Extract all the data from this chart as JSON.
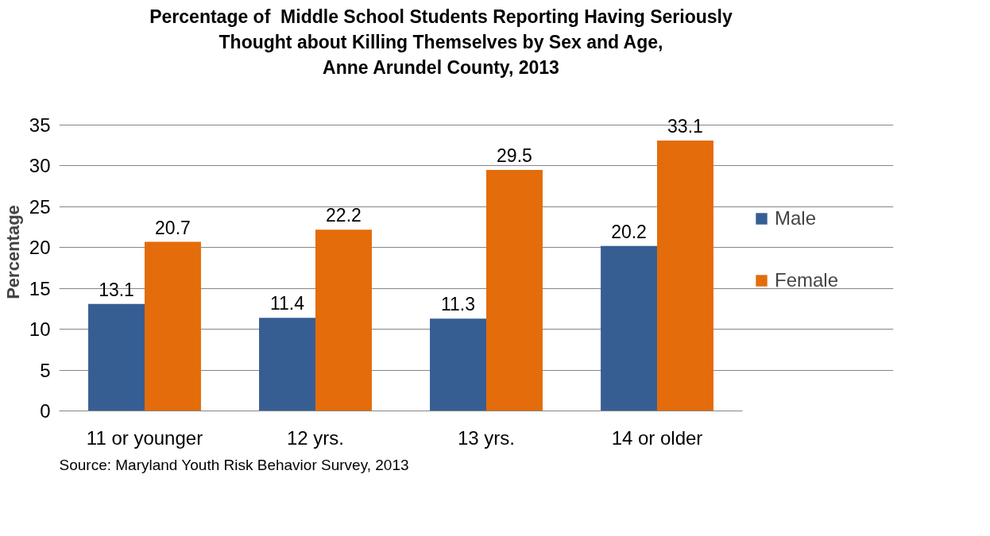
{
  "chart_data": {
    "type": "bar",
    "title": "Percentage of  Middle School Students Reporting Having Seriously\nThought about Killing Themselves by Sex and Age,\nAnne Arundel County, 2013",
    "ylabel": "Percentage",
    "categories": [
      "11 or younger",
      "12 yrs.",
      "13 yrs.",
      "14 or older"
    ],
    "series": [
      {
        "name": "Male",
        "color": "#375e93",
        "values": [
          13.1,
          11.4,
          11.3,
          20.2
        ]
      },
      {
        "name": "Female",
        "color": "#e46c0a",
        "values": [
          20.7,
          22.2,
          29.5,
          33.1
        ]
      }
    ],
    "ylim": [
      0,
      35
    ],
    "yticks": [
      0,
      5,
      10,
      15,
      20,
      25,
      30,
      35
    ],
    "grid": "y",
    "legend": "right",
    "data_labels": true,
    "annotations": [
      "Source: Maryland Youth Risk Behavior Survey, 2013"
    ]
  }
}
